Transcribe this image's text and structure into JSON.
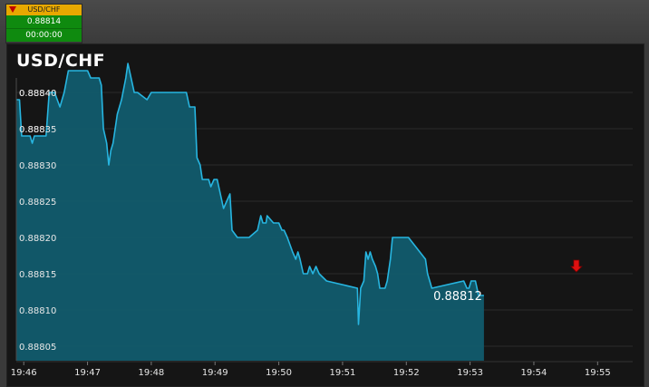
{
  "ticker": {
    "symbol": "USD/CHF",
    "price": "0.88814",
    "timer": "00:00:00",
    "direction_icon": "down-arrow-icon",
    "colors": {
      "header": "#e8a800",
      "body": "#0f8a0f",
      "arrow": "#c00000"
    }
  },
  "chart_title": "USD/CHF",
  "chart_data": {
    "type": "area",
    "title": "USD/CHF",
    "xlabel": "",
    "ylabel": "",
    "x_ticks": [
      "19:46",
      "19:47",
      "19:48",
      "19:49",
      "19:50",
      "19:51",
      "19:52",
      "19:53",
      "19:54",
      "19:55"
    ],
    "y_ticks": [
      "0.88805",
      "0.88810",
      "0.88815",
      "0.88820",
      "0.88825",
      "0.88830",
      "0.88835",
      "0.88840"
    ],
    "xlim": [
      "19:45:53",
      "19:55:33"
    ],
    "ylim": [
      0.88803,
      0.88842
    ],
    "grid": true,
    "colors": {
      "line": "#27b5e0",
      "fill": "#115b6d",
      "marker": "#e01010",
      "background": "#151515"
    },
    "last_value_label": "0.88812",
    "marker": {
      "time": "19:54:40",
      "value": 0.88815,
      "icon": "red-down-arrow-icon"
    },
    "series": [
      {
        "points": [
          [
            "19:45:53",
            0.88839
          ],
          [
            "19:45:56",
            0.88839
          ],
          [
            "19:45:58",
            0.88834
          ],
          [
            "19:46:06",
            0.88834
          ],
          [
            "19:46:08",
            0.88833
          ],
          [
            "19:46:10",
            0.88834
          ],
          [
            "19:46:21",
            0.88834
          ],
          [
            "19:46:24",
            0.8884
          ],
          [
            "19:46:29",
            0.8884
          ],
          [
            "19:46:34",
            0.88838
          ],
          [
            "19:46:38",
            0.8884
          ],
          [
            "19:46:42",
            0.88843
          ],
          [
            "19:46:53",
            0.88843
          ],
          [
            "19:47:00",
            0.88843
          ],
          [
            "19:47:03",
            0.88842
          ],
          [
            "19:47:11",
            0.88842
          ],
          [
            "19:47:13",
            0.88841
          ],
          [
            "19:47:15",
            0.88835
          ],
          [
            "19:47:18",
            0.88833
          ],
          [
            "19:47:20",
            0.8883
          ],
          [
            "19:47:22",
            0.88832
          ],
          [
            "19:47:24",
            0.88833
          ],
          [
            "19:47:28",
            0.88837
          ],
          [
            "19:47:32",
            0.88839
          ],
          [
            "19:47:36",
            0.88842
          ],
          [
            "19:47:38",
            0.88844
          ],
          [
            "19:47:41",
            0.88842
          ],
          [
            "19:47:44",
            0.8884
          ],
          [
            "19:47:47",
            0.8884
          ],
          [
            "19:47:56",
            0.88839
          ],
          [
            "19:48:00",
            0.8884
          ],
          [
            "19:48:03",
            0.8884
          ],
          [
            "19:48:30",
            0.8884
          ],
          [
            "19:48:33",
            0.8884
          ],
          [
            "19:48:36",
            0.88838
          ],
          [
            "19:48:41",
            0.88838
          ],
          [
            "19:48:43",
            0.88831
          ],
          [
            "19:48:46",
            0.8883
          ],
          [
            "19:48:48",
            0.88828
          ],
          [
            "19:48:54",
            0.88828
          ],
          [
            "19:48:56",
            0.88827
          ],
          [
            "19:48:59",
            0.88828
          ],
          [
            "19:49:02",
            0.88828
          ],
          [
            "19:49:05",
            0.88826
          ],
          [
            "19:49:08",
            0.88824
          ],
          [
            "19:49:11",
            0.88825
          ],
          [
            "19:49:14",
            0.88826
          ],
          [
            "19:49:16",
            0.88821
          ],
          [
            "19:49:21",
            0.8882
          ],
          [
            "19:49:32",
            0.8882
          ],
          [
            "19:49:40",
            0.88821
          ],
          [
            "19:49:43",
            0.88823
          ],
          [
            "19:49:45",
            0.88822
          ],
          [
            "19:49:48",
            0.88822
          ],
          [
            "19:49:49",
            0.88823
          ],
          [
            "19:49:55",
            0.88822
          ],
          [
            "19:50:00",
            0.88822
          ],
          [
            "19:50:03",
            0.88821
          ],
          [
            "19:50:05",
            0.88821
          ],
          [
            "19:50:08",
            0.8882
          ],
          [
            "19:50:13",
            0.88818
          ],
          [
            "19:50:16",
            0.88817
          ],
          [
            "19:50:18",
            0.88818
          ],
          [
            "19:50:20",
            0.88817
          ],
          [
            "19:50:23",
            0.88815
          ],
          [
            "19:50:27",
            0.88815
          ],
          [
            "19:50:29",
            0.88816
          ],
          [
            "19:50:32",
            0.88815
          ],
          [
            "19:50:35",
            0.88816
          ],
          [
            "19:50:38",
            0.88815
          ],
          [
            "19:50:45",
            0.88814
          ],
          [
            "19:51:14",
            0.88813
          ],
          [
            "19:51:15",
            0.88808
          ],
          [
            "19:51:17",
            0.88813
          ],
          [
            "19:51:20",
            0.88814
          ],
          [
            "19:51:22",
            0.88818
          ],
          [
            "19:51:24",
            0.88817
          ],
          [
            "19:51:26",
            0.88818
          ],
          [
            "19:51:28",
            0.88817
          ],
          [
            "19:51:31",
            0.88816
          ],
          [
            "19:51:33",
            0.88815
          ],
          [
            "19:51:35",
            0.88813
          ],
          [
            "19:51:40",
            0.88813
          ],
          [
            "19:51:42",
            0.88814
          ],
          [
            "19:51:45",
            0.88817
          ],
          [
            "19:51:47",
            0.8882
          ],
          [
            "19:51:57",
            0.8882
          ],
          [
            "19:52:02",
            0.8882
          ],
          [
            "19:52:18",
            0.88817
          ],
          [
            "19:52:20",
            0.88815
          ],
          [
            "19:52:22",
            0.88814
          ],
          [
            "19:52:24",
            0.88813
          ],
          [
            "19:52:54",
            0.88814
          ],
          [
            "19:52:57",
            0.88813
          ],
          [
            "19:52:59",
            0.88813
          ],
          [
            "19:53:01",
            0.88814
          ],
          [
            "19:53:05",
            0.88814
          ],
          [
            "19:53:08",
            0.88812
          ],
          [
            "19:53:13",
            0.88812
          ]
        ]
      }
    ]
  }
}
